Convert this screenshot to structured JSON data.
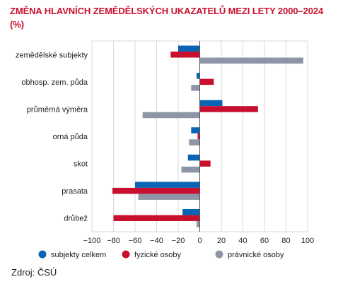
{
  "chart_data": {
    "type": "bar",
    "orientation": "horizontal",
    "title": "ZMĚNA HLAVNÍCH ZEMĚDĚLSKÝCH UKAZATELŮ MEZI LETY 2000–2024",
    "subtitle": "(%)",
    "categories": [
      "zemědělské subjekty",
      "obhosp. zem. půda",
      "průměrná výměra",
      "orná půda",
      "skot",
      "prasata",
      "drůbež"
    ],
    "series": [
      {
        "name": "subjekty celkem",
        "color": "#0a64b4",
        "values": [
          -20,
          -3,
          21,
          -8,
          -11,
          -60,
          -16
        ]
      },
      {
        "name": "fyzické osoby",
        "color": "#c8102e",
        "values": [
          -27,
          13,
          54,
          -2,
          10,
          -81,
          -80
        ]
      },
      {
        "name": "právnické osoby",
        "color": "#8e95a6",
        "values": [
          96,
          -8,
          -53,
          -10,
          -17,
          -57,
          -3
        ]
      }
    ],
    "xlim": [
      -100,
      100
    ],
    "xticks": [
      "−100",
      "−80",
      "−60",
      "−40",
      "−20",
      "0",
      "20",
      "40",
      "60",
      "80",
      "100"
    ],
    "grid": true,
    "legend_position": "bottom"
  },
  "source": "Zdroj: ČSÚ"
}
